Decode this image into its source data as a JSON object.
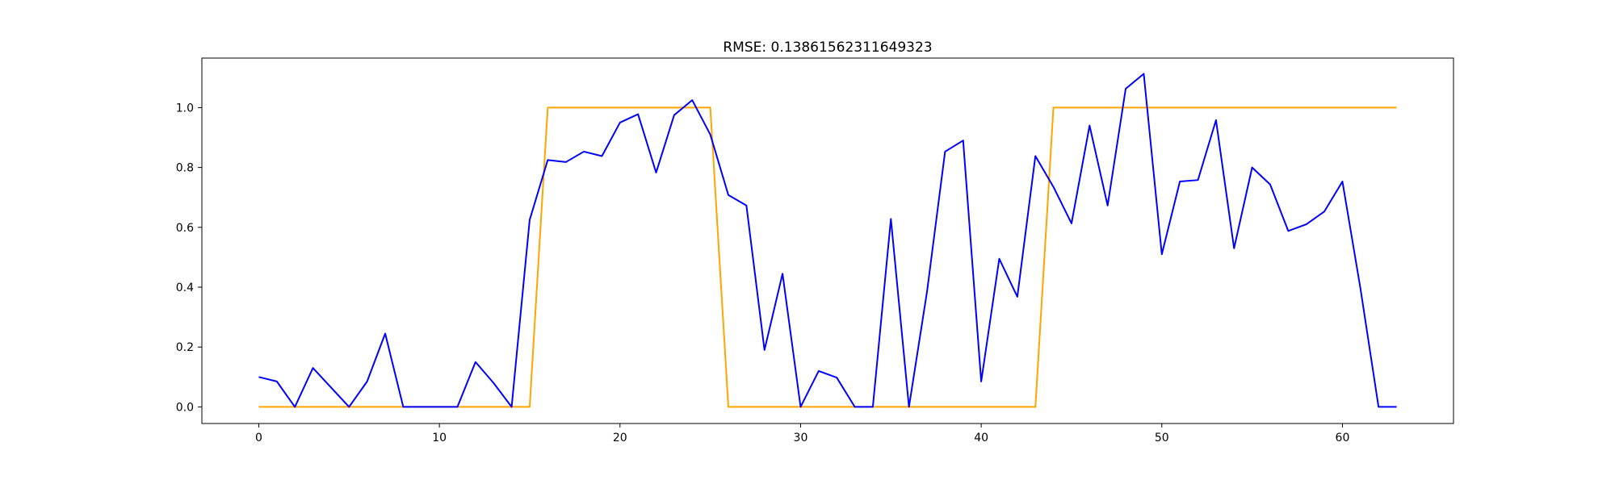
{
  "chart_data": {
    "type": "line",
    "title": "RMSE: 0.13861562311649323",
    "xlabel": "",
    "ylabel": "",
    "xlim": [
      -3.15,
      66.15
    ],
    "ylim": [
      -0.0555,
      1.1655
    ],
    "xticks": [
      0,
      10,
      20,
      30,
      40,
      50,
      60
    ],
    "xtick_labels": [
      "0",
      "10",
      "20",
      "30",
      "40",
      "50",
      "60"
    ],
    "yticks": [
      0.0,
      0.2,
      0.4,
      0.6,
      0.8,
      1.0
    ],
    "ytick_labels": [
      "0.0",
      "0.2",
      "0.4",
      "0.6",
      "0.8",
      "1.0"
    ],
    "grid": false,
    "legend": "none",
    "x": [
      0,
      1,
      2,
      3,
      4,
      5,
      6,
      7,
      8,
      9,
      10,
      11,
      12,
      13,
      14,
      15,
      16,
      17,
      18,
      19,
      20,
      21,
      22,
      23,
      24,
      25,
      26,
      27,
      28,
      29,
      30,
      31,
      32,
      33,
      34,
      35,
      36,
      37,
      38,
      39,
      40,
      41,
      42,
      43,
      44,
      45,
      46,
      47,
      48,
      49,
      50,
      51,
      52,
      53,
      54,
      55,
      56,
      57,
      58,
      59,
      60,
      61,
      62,
      63
    ],
    "series": [
      {
        "color": "#ffa500",
        "values": [
          0,
          0,
          0,
          0,
          0,
          0,
          0,
          0,
          0,
          0,
          0,
          0,
          0,
          0,
          0,
          0,
          1,
          1,
          1,
          1,
          1,
          1,
          1,
          1,
          1,
          1,
          0,
          0,
          0,
          0,
          0,
          0,
          0,
          0,
          0,
          0,
          0,
          0,
          0,
          0,
          0,
          0,
          0,
          0,
          1,
          1,
          1,
          1,
          1,
          1,
          1,
          1,
          1,
          1,
          1,
          1,
          1,
          1,
          1,
          1,
          1,
          1,
          1,
          1
        ]
      },
      {
        "color": "#0000ff",
        "values": [
          0.1,
          0.085,
          0.0,
          0.13,
          0.065,
          0.0,
          0.085,
          0.245,
          0.0,
          0.0,
          0.0,
          0.0,
          0.15,
          0.08,
          0.0,
          0.625,
          0.825,
          0.818,
          0.853,
          0.838,
          0.95,
          0.978,
          0.783,
          0.975,
          1.025,
          0.91,
          0.708,
          0.673,
          0.19,
          0.445,
          0.0,
          0.12,
          0.098,
          0.0,
          0.0,
          0.628,
          0.0,
          0.385,
          0.853,
          0.89,
          0.085,
          0.495,
          0.368,
          0.838,
          0.735,
          0.613,
          0.94,
          0.673,
          1.063,
          1.113,
          0.51,
          0.753,
          0.758,
          0.958,
          0.53,
          0.8,
          0.743,
          0.588,
          0.61,
          0.653,
          0.753,
          0.395,
          0.0,
          0.0
        ]
      }
    ]
  }
}
